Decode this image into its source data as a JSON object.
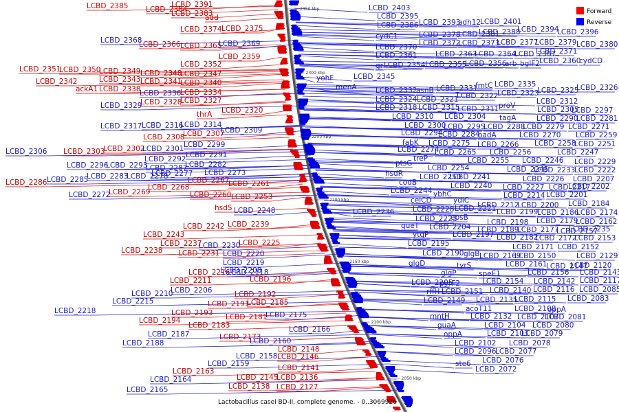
{
  "caption": "Lactobacillus casei BD-II, complete genome. - 0..3069926",
  "legend": [
    {
      "label": "Forward",
      "color": "#ff0000"
    },
    {
      "label": "Reverse",
      "color": "#0000ff"
    }
  ],
  "ticks": [
    "2350 kbp",
    "2300 kbp",
    "2250 kbp",
    "2200 kbp",
    "2150 kbp",
    "2100 kbp",
    "2050 kbp"
  ],
  "forward_labels": [
    "LCBD_2385",
    "LCBD_2391",
    "LCBD_2384",
    "LCBD_2383",
    "add",
    "LCBD_2374",
    "LCBD_2375",
    "LCBD_2366",
    "LCBD_2365",
    "LCBD_2359",
    "LCBD_2352",
    "LCBD_2351",
    "LCBD_2350",
    "LCBD_2349",
    "LCBD_2348",
    "LCBD_2347",
    "LCBD_2342",
    "LCBD_2343",
    "LCBD_2341",
    "LCBD_2340",
    "ackA1",
    "LCBD_2338",
    "LCBD_2334",
    "LCBD_2328",
    "LCBD_2327",
    "LCBD_2320",
    "thrA",
    "LCBD_2308",
    "LCBD_2307",
    "LCBD_2303",
    "LCBD_2302",
    "LCBD_2286",
    "LCBD_2267",
    "LCBD_2261",
    "LCBD_2269",
    "LCBD_2268",
    "LCBD_2260",
    "LCBD_2253",
    "hsdS",
    "LCBD_2242",
    "LCBD_2239",
    "LCBD_2243",
    "LCBD_2237",
    "LCBD_2225",
    "LCBD_2238",
    "LCBD_2231",
    "LCBD_2216",
    "LCBD_2211",
    "LCBD_2196",
    "LCBD_2192",
    "LCBD_2191",
    "LCBD_2185",
    "LCBD_2193",
    "LCBD_2194",
    "LCBD_2181",
    "LCBD_2183",
    "LCBD_2173",
    "LCBD_2148",
    "LCBD_2146",
    "LCBD_2163",
    "LCBD_2141",
    "LCBD_2145",
    "LCBD_2136",
    "LCBD_2138",
    "LCBD_2127"
  ],
  "reverse_labels": [
    "LCBD_2403",
    "LCBD_2395",
    "LCBD_2393",
    "adh12",
    "LCBD_2401",
    "LCBD_2386",
    "LCBD_2394",
    "LCBD_2396",
    "LCBD_2388",
    "LCBD_2368",
    "cydC1",
    "LCBD_2378",
    "LCBD_2381",
    "LCBD_2369",
    "LCBD_2372",
    "LCBD_2373",
    "LCBD_2377",
    "LCBD_2379",
    "LCBD_2380",
    "LCBD_2370",
    "LCBD_2371",
    "LCBD_2361",
    "LCBD_2363",
    "LCBD_2364",
    "LCBD_2367",
    "gr",
    "LCBD_2354",
    "LCBD_2355",
    "LCBD_2356",
    "arb",
    "bglF2",
    "LCBD_2360",
    "cydCD",
    "yohF",
    "LCBD_2345",
    "menA",
    "fmtC",
    "LCBD_2335",
    "LCBD_2332",
    "asnB",
    "LCBD_2331",
    "LCBD_2325",
    "LCBD_2326",
    "LCBD_2336",
    "LCBD_2322",
    "LCBD_2323",
    "LCBD_2324",
    "LCBD_2321",
    "LCBD_2312",
    "LCBD_2329",
    "LCBD_2318",
    "LCBD_2315",
    "LCBD_2311",
    "proV",
    "LCBD_2305",
    "LCBD_2297",
    "LCBD_2310",
    "LCBD_2304",
    "tagA",
    "LCBD_2290",
    "LCBD_2281",
    "LCBD_2317",
    "LCBD_2316",
    "LCBD_2314",
    "LCBD_2300",
    "LCBD_2295",
    "LCBD_2288",
    "LCBD_2279",
    "LCBD_2271",
    "LCBD_2309",
    "LCBD_2294",
    "LCBD_2284",
    "oadA",
    "LCBD_2270",
    "LCBD_2259",
    "fabK",
    "LCBD_2275",
    "LCBD_2266",
    "LCBD_2258",
    "LCBD_2251",
    "LCBD_2299",
    "LCBD_2274",
    "LCBD_2265",
    "LCBD_2256",
    "LCBD_2247",
    "LCBD_2306",
    "LCBD_2301",
    "LCBD_2291",
    "treP",
    "LCBD_2255",
    "LCBD_2246",
    "LCBD_2229",
    "LCBD_2292",
    "LCBD_2282",
    "ptsG",
    "LCBD_2245",
    "LCBD_2233",
    "LCBD_2222",
    "LCBD_2296",
    "LCBD_2293",
    "LCBD_2287",
    "LCBD_2254",
    "hsdR",
    "LCBD_2241",
    "LCBD_2226",
    "LCBD_2207",
    "LCBD_2277",
    "LCBD_2273",
    "LCBD_2250",
    "codB",
    "LCBD_2240",
    "LCBD_2227",
    "LCBD_2217",
    "LCBD_2202",
    "LCBD_2285",
    "LCBD_2283",
    "LCBD_2278",
    "LCBD_2244",
    "ybhC",
    "LCBD_2214",
    "LCBD_2201",
    "LCBD_2272",
    "celCD",
    "ydiC",
    "LCBD_2212",
    "LCBD_2200",
    "LCBD_2184",
    "LCBD_2228",
    "LCBD_2221",
    "LCBD_2199",
    "LCBD_2186",
    "LCBD_2174",
    "LCBD_2236",
    "LCBD_2223",
    "epsB",
    "LCBD_2198",
    "LCBD_2179",
    "LCBD_2162",
    "LCBD_2248",
    "queT",
    "LCBD_2204",
    "LCBD_2189",
    "LCBD_2177",
    "LCBD_2157",
    "LCBD_2235",
    "ytgP",
    "LCBD_2197",
    "LCBD_2182",
    "LCBD_2172",
    "LCBD_2153",
    "LCBD_2230",
    "LCBD_2195",
    "LCBD_2171",
    "LCBD_2152",
    "LCBD_2220",
    "LCBD_2190",
    "glgB",
    "LCBD_2169",
    "LCBD_2150",
    "LCBD_2129",
    "LCBD_2219",
    "glgD",
    "tyrS",
    "LCBD_2161",
    "LCBD_2147",
    "LCBD_2120",
    "LCBD_2208",
    "glgP",
    "speE1",
    "LCBD_2156",
    "LCBD_2143",
    "LCBD_2118",
    "LCBD_2205",
    "pyrF2",
    "LCBD_2154",
    "LCBD_2142",
    "LCBD_2117",
    "LCBD_2210",
    "LCBD_2206",
    "rffH",
    "LCBD_2151",
    "LCBD_2140",
    "LCBD_2116",
    "LCBD_2085",
    "LCBD_2215",
    "LCBD_2149",
    "LCBD_2135",
    "LCBD_2115",
    "LCBD_2083",
    "LCBD_2218",
    "acoT11",
    "LCBD_2108",
    "oppA",
    "LCBD_2175",
    "mntH",
    "LCBD_2132",
    "LCBD_2107",
    "LCBD_2081",
    "LCBD_2166",
    "guaA",
    "LCBD_2104",
    "LCBD_2080",
    "LCBD_2187",
    "oppA",
    "LCBD_2103",
    "LCBD_2079",
    "LCBD_2160",
    "LCBD_2188",
    "LCBD_2102",
    "LCBD_2078",
    "LCBD_2096",
    "LCBD_2077",
    "LCBD_2158",
    "LCBD_2159",
    "ste6",
    "LCBD_2076",
    "LCBD_2164",
    "LCBD_2072",
    "LCBD_2165"
  ]
}
